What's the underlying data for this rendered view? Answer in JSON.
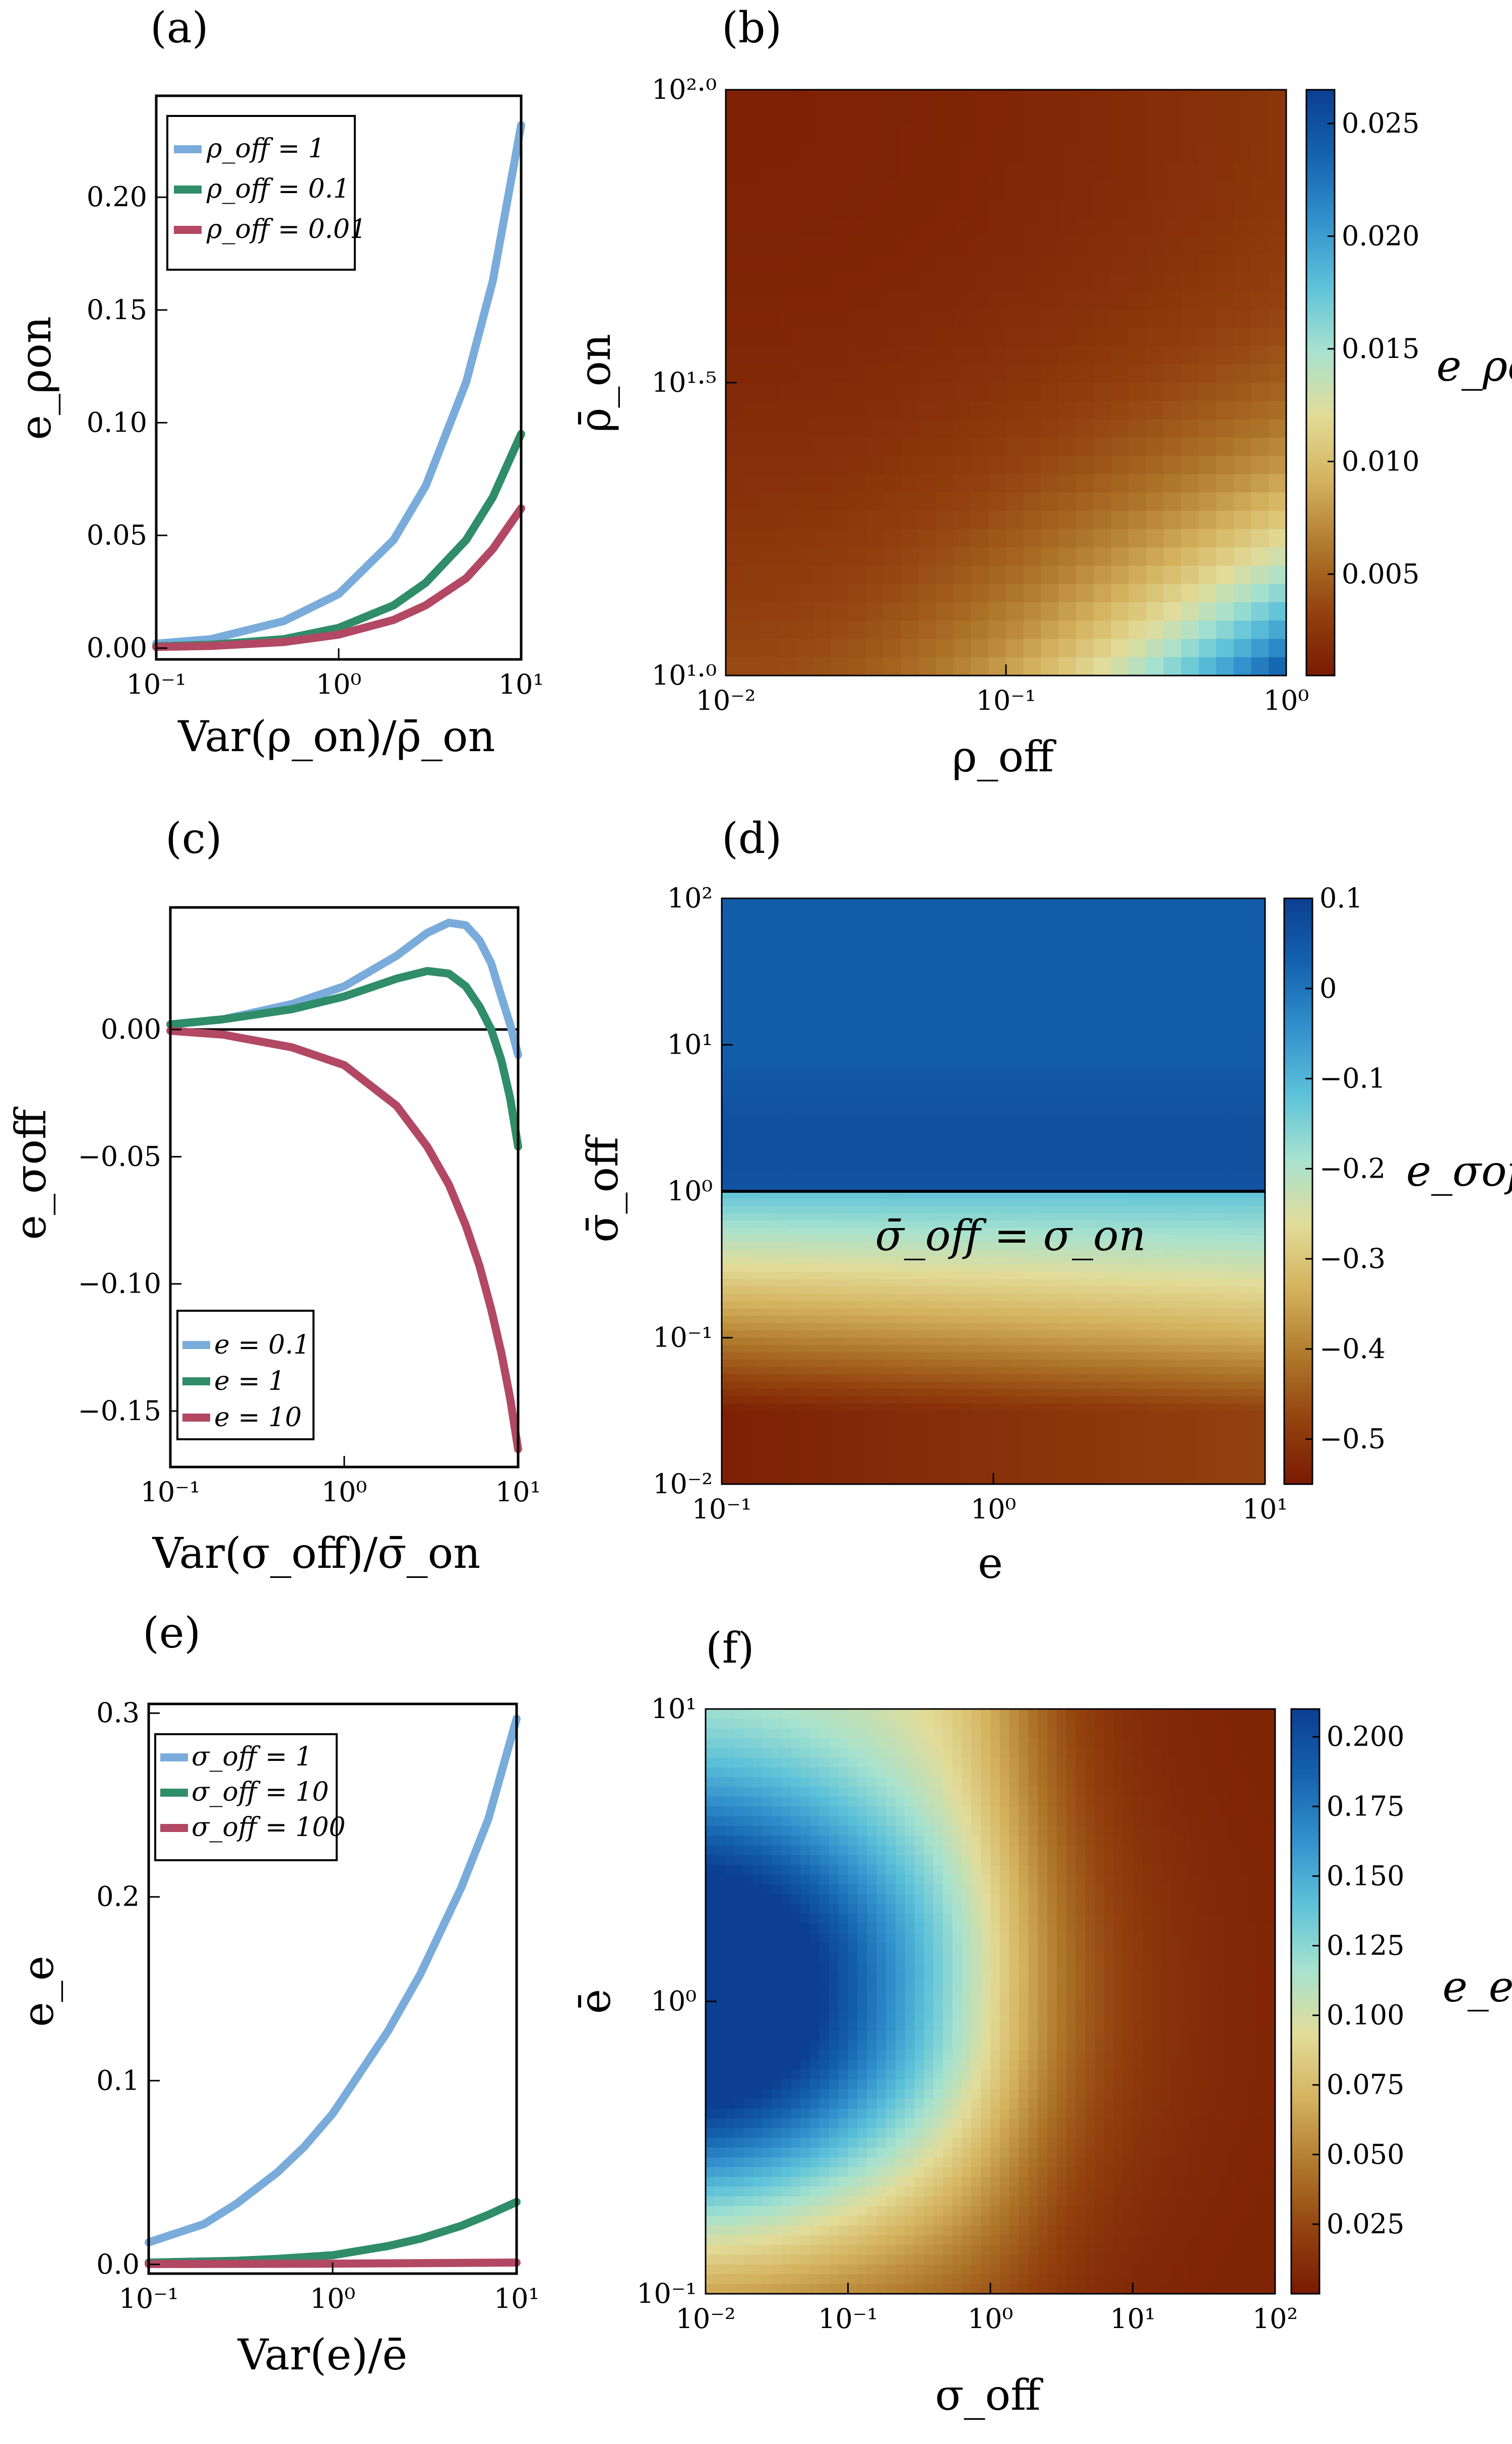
{
  "colors": {
    "blue": "#79ACDA",
    "green": "#2F8D69",
    "red": "#B24863",
    "zero_line": "#000000",
    "colormap": [
      "#7A1A03",
      "#93430F",
      "#B07A2C",
      "#D4B25E",
      "#E2DC99",
      "#A6E2CF",
      "#5CC1D9",
      "#3290CC",
      "#1462AE",
      "#0C3F91"
    ]
  },
  "chart_data": [
    {
      "panel": "(a)",
      "type": "line",
      "xlabel": "Var(ρ_on)/ρ̄_on",
      "ylabel": "e_ρon",
      "xscale": "log",
      "xlim": [
        0.1,
        10
      ],
      "ylim": [
        -0.005,
        0.245
      ],
      "xticks": [
        {
          "v": 0.1,
          "label": "10⁻¹"
        },
        {
          "v": 1,
          "label": "10⁰"
        },
        {
          "v": 10,
          "label": "10¹"
        }
      ],
      "yticks": [
        {
          "v": 0,
          "label": "0.00"
        },
        {
          "v": 0.05,
          "label": "0.05"
        },
        {
          "v": 0.1,
          "label": "0.10"
        },
        {
          "v": 0.15,
          "label": "0.15"
        },
        {
          "v": 0.2,
          "label": "0.20"
        }
      ],
      "legend": "top-left",
      "series": [
        {
          "name": "ρ_off = 1",
          "color": "blue",
          "x": [
            0.1,
            0.2,
            0.5,
            1,
            2,
            3,
            5,
            7,
            10
          ],
          "y": [
            0.002,
            0.004,
            0.012,
            0.024,
            0.048,
            0.072,
            0.118,
            0.163,
            0.232
          ]
        },
        {
          "name": "ρ_off = 0.1",
          "color": "green",
          "x": [
            0.1,
            0.2,
            0.5,
            1,
            2,
            3,
            5,
            7,
            10
          ],
          "y": [
            0.0008,
            0.0015,
            0.004,
            0.009,
            0.019,
            0.029,
            0.048,
            0.067,
            0.095
          ]
        },
        {
          "name": "ρ_off = 0.01",
          "color": "red",
          "x": [
            0.1,
            0.2,
            0.5,
            1,
            2,
            3,
            5,
            7,
            10
          ],
          "y": [
            0.0005,
            0.001,
            0.0027,
            0.006,
            0.0125,
            0.019,
            0.031,
            0.044,
            0.062
          ]
        }
      ]
    },
    {
      "panel": "(b)",
      "type": "heatmap",
      "xlabel": "ρ_off",
      "ylabel": "ρ̄_on",
      "colorbar_label": "e_ρon",
      "xscale": "log",
      "yscale": "log",
      "xlim": [
        0.01,
        1
      ],
      "ylim": [
        10,
        100
      ],
      "xticks": [
        {
          "v": 0.01,
          "label": "10⁻²"
        },
        {
          "v": 0.1,
          "label": "10⁻¹"
        },
        {
          "v": 1,
          "label": "10⁰"
        }
      ],
      "yticks": [
        {
          "v": 10,
          "label": "10¹·⁰"
        },
        {
          "v": 31.62,
          "label": "10¹·⁵"
        },
        {
          "v": 100,
          "label": "10²·⁰"
        }
      ],
      "clim": [
        0.0005,
        0.0265
      ],
      "cticks": [
        {
          "v": 0.005,
          "label": "0.005"
        },
        {
          "v": 0.01,
          "label": "0.010"
        },
        {
          "v": 0.015,
          "label": "0.015"
        },
        {
          "v": 0.02,
          "label": "0.020"
        },
        {
          "v": 0.025,
          "label": "0.025"
        }
      ],
      "model": "rho",
      "grid": [
        32,
        32
      ]
    },
    {
      "panel": "(c)",
      "type": "line",
      "xlabel": "Var(σ_off)/σ̄_on",
      "ylabel": "e_σoff",
      "xscale": "log",
      "xlim": [
        0.1,
        10
      ],
      "ylim": [
        -0.172,
        0.048
      ],
      "xticks": [
        {
          "v": 0.1,
          "label": "10⁻¹"
        },
        {
          "v": 1,
          "label": "10⁰"
        },
        {
          "v": 10,
          "label": "10¹"
        }
      ],
      "yticks": [
        {
          "v": 0,
          "label": "0.00"
        },
        {
          "v": -0.05,
          "label": "−0.05"
        },
        {
          "v": -0.1,
          "label": "−0.10"
        },
        {
          "v": -0.15,
          "label": "−0.15"
        }
      ],
      "zero_line": true,
      "legend": "bottom-left",
      "series": [
        {
          "name": "e = 0.1",
          "color": "blue",
          "x": [
            0.1,
            0.2,
            0.5,
            1,
            2,
            3,
            4,
            5,
            6,
            7,
            8,
            9,
            10
          ],
          "y": [
            0.002,
            0.004,
            0.01,
            0.017,
            0.029,
            0.038,
            0.042,
            0.041,
            0.035,
            0.026,
            0.013,
            0.002,
            -0.01
          ]
        },
        {
          "name": "e = 1",
          "color": "green",
          "x": [
            0.1,
            0.2,
            0.5,
            1,
            2,
            3,
            4,
            5,
            6,
            7,
            8,
            9,
            10
          ],
          "y": [
            0.002,
            0.004,
            0.008,
            0.013,
            0.02,
            0.023,
            0.022,
            0.017,
            0.009,
            0.0,
            -0.012,
            -0.027,
            -0.046
          ]
        },
        {
          "name": "e = 10",
          "color": "red",
          "x": [
            0.1,
            0.2,
            0.5,
            1,
            2,
            3,
            4,
            5,
            6,
            7,
            8,
            9,
            10
          ],
          "y": [
            -0.0005,
            -0.002,
            -0.007,
            -0.014,
            -0.03,
            -0.046,
            -0.061,
            -0.077,
            -0.093,
            -0.11,
            -0.127,
            -0.145,
            -0.165
          ]
        }
      ]
    },
    {
      "panel": "(d)",
      "type": "heatmap",
      "xlabel": "e",
      "ylabel": "σ̄_off",
      "colorbar_label": "e_σoff",
      "xscale": "log",
      "yscale": "log",
      "xlim": [
        0.1,
        10
      ],
      "ylim": [
        0.01,
        100
      ],
      "xticks": [
        {
          "v": 0.1,
          "label": "10⁻¹"
        },
        {
          "v": 1,
          "label": "10⁰"
        },
        {
          "v": 10,
          "label": "10¹"
        }
      ],
      "yticks": [
        {
          "v": 0.01,
          "label": "10⁻²"
        },
        {
          "v": 0.1,
          "label": "10⁻¹"
        },
        {
          "v": 1,
          "label": "10⁰"
        },
        {
          "v": 10,
          "label": "10¹"
        },
        {
          "v": 100,
          "label": "10²"
        }
      ],
      "clim": [
        -0.55,
        0.1
      ],
      "cticks": [
        {
          "v": 0.1,
          "label": "0.1"
        },
        {
          "v": 0,
          "label": "0"
        },
        {
          "v": -0.1,
          "label": "−0.1"
        },
        {
          "v": -0.2,
          "label": "−0.2"
        },
        {
          "v": -0.3,
          "label": "−0.3"
        },
        {
          "v": -0.4,
          "label": "−0.4"
        },
        {
          "v": -0.5,
          "label": "−0.5"
        }
      ],
      "hline": 1,
      "annotation": "σ̄_off = σ_on",
      "model": "sigma",
      "grid": [
        80,
        80
      ]
    },
    {
      "panel": "(e)",
      "type": "line",
      "xlabel": "Var(e)/ē",
      "ylabel": "e_e",
      "xscale": "log",
      "xlim": [
        0.1,
        10
      ],
      "ylim": [
        -0.005,
        0.305
      ],
      "xticks": [
        {
          "v": 0.1,
          "label": "10⁻¹"
        },
        {
          "v": 1,
          "label": "10⁰"
        },
        {
          "v": 10,
          "label": "10¹"
        }
      ],
      "yticks": [
        {
          "v": 0,
          "label": "0.0"
        },
        {
          "v": 0.1,
          "label": "0.1"
        },
        {
          "v": 0.2,
          "label": "0.2"
        },
        {
          "v": 0.3,
          "label": "0.3"
        }
      ],
      "legend": "top-left",
      "series": [
        {
          "name": "σ_off = 1",
          "color": "blue",
          "x": [
            0.1,
            0.2,
            0.3,
            0.5,
            0.7,
            1,
            2,
            3,
            5,
            7,
            10
          ],
          "y": [
            0.012,
            0.022,
            0.033,
            0.05,
            0.064,
            0.082,
            0.127,
            0.158,
            0.205,
            0.242,
            0.297
          ]
        },
        {
          "name": "σ_off = 10",
          "color": "green",
          "x": [
            0.1,
            0.3,
            0.5,
            1,
            2,
            3,
            5,
            7,
            10
          ],
          "y": [
            0.001,
            0.002,
            0.003,
            0.005,
            0.01,
            0.014,
            0.021,
            0.027,
            0.034
          ]
        },
        {
          "name": "σ_off = 100",
          "color": "red",
          "x": [
            0.1,
            1,
            3,
            10
          ],
          "y": [
            0.0002,
            0.0004,
            0.0007,
            0.001
          ]
        }
      ]
    },
    {
      "panel": "(f)",
      "type": "heatmap",
      "xlabel": "σ_off",
      "ylabel": "ē",
      "colorbar_label": "e_e",
      "xscale": "log",
      "yscale": "log",
      "xlim": [
        0.01,
        100
      ],
      "ylim": [
        0.1,
        10
      ],
      "xticks": [
        {
          "v": 0.01,
          "label": "10⁻²"
        },
        {
          "v": 0.1,
          "label": "10⁻¹"
        },
        {
          "v": 1,
          "label": "10⁰"
        },
        {
          "v": 10,
          "label": "10¹"
        },
        {
          "v": 100,
          "label": "10²"
        }
      ],
      "yticks": [
        {
          "v": 0.1,
          "label": "10⁻¹"
        },
        {
          "v": 1,
          "label": "10⁰"
        },
        {
          "v": 10,
          "label": "10¹"
        }
      ],
      "clim": [
        0.0,
        0.21
      ],
      "cticks": [
        {
          "v": 0.025,
          "label": "0.025"
        },
        {
          "v": 0.05,
          "label": "0.050"
        },
        {
          "v": 0.075,
          "label": "0.075"
        },
        {
          "v": 0.1,
          "label": "0.100"
        },
        {
          "v": 0.125,
          "label": "0.125"
        },
        {
          "v": 0.15,
          "label": "0.150"
        },
        {
          "v": 0.175,
          "label": "0.175"
        },
        {
          "v": 0.2,
          "label": "0.200"
        }
      ],
      "model": "e",
      "grid": [
        60,
        60
      ]
    }
  ]
}
